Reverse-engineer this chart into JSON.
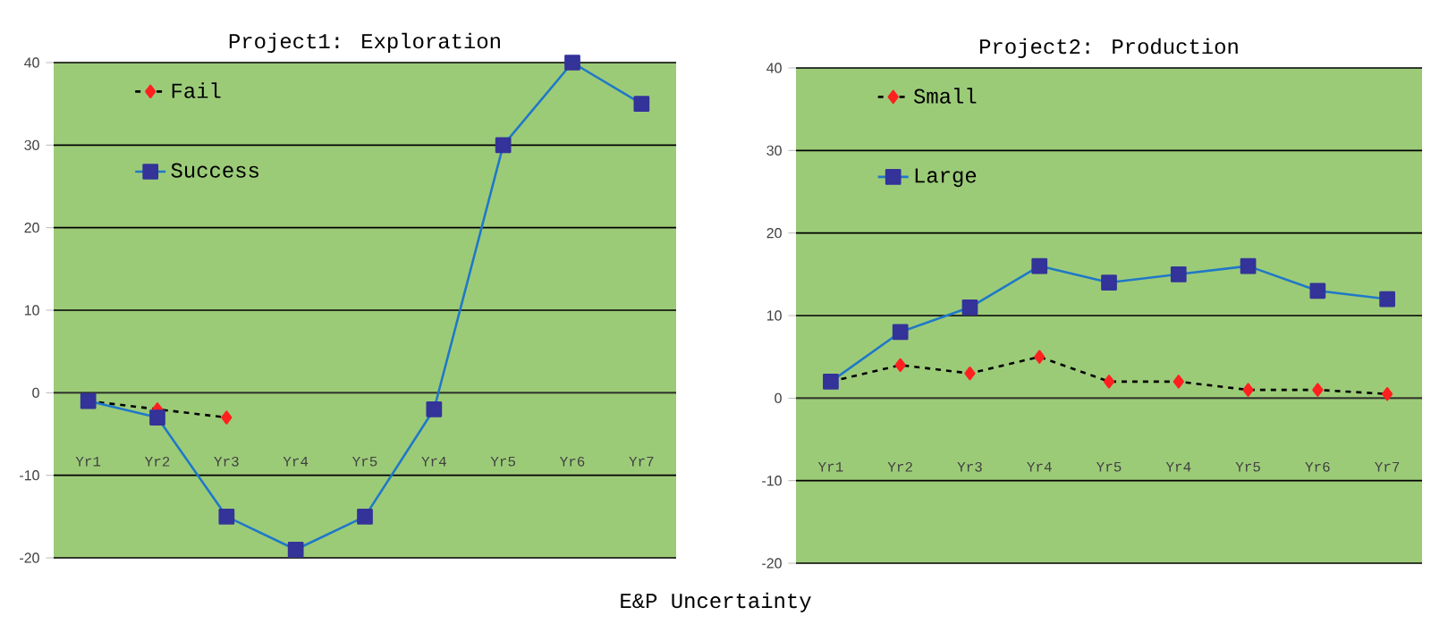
{
  "chart_data": [
    {
      "type": "line",
      "title": "Project1: Exploration",
      "categories": [
        "Yr1",
        "Yr2",
        "Yr3",
        "Yr4",
        "Yr5",
        "Yr4",
        "Yr5",
        "Yr6",
        "Yr7"
      ],
      "series": [
        {
          "name": "Fail",
          "color": "#ff2020",
          "marker": "diamond",
          "line_style": "dashed",
          "values": [
            -1,
            -2,
            -3,
            null,
            null,
            null,
            null,
            null,
            null
          ]
        },
        {
          "name": "Success",
          "color": "#333399",
          "marker": "square",
          "line_style": "solid",
          "values": [
            -1,
            -3,
            -15,
            -19,
            -15,
            -2,
            30,
            40,
            35
          ]
        }
      ],
      "ylim": [
        -20,
        40
      ],
      "yticks": [
        -20,
        -10,
        0,
        10,
        20,
        30,
        40
      ],
      "grid": "y",
      "legend": "top left",
      "annotations": [
        "E&P Uncertainty"
      ]
    },
    {
      "type": "line",
      "title": "Project2: Production",
      "categories": [
        "Yr1",
        "Yr2",
        "Yr3",
        "Yr4",
        "Yr5",
        "Yr4",
        "Yr5",
        "Yr6",
        "Yr7"
      ],
      "series": [
        {
          "name": "Small",
          "color": "#ff2020",
          "marker": "diamond",
          "line_style": "dashed",
          "values": [
            2,
            4,
            3,
            5,
            2,
            2,
            1,
            1,
            0.5
          ]
        },
        {
          "name": "Large",
          "color": "#333399",
          "marker": "square",
          "line_style": "solid",
          "values": [
            2,
            8,
            11,
            16,
            14,
            15,
            16,
            13,
            12
          ]
        }
      ],
      "ylim": [
        -20,
        40
      ],
      "yticks": [
        -20,
        -10,
        0,
        10,
        20,
        30,
        40
      ],
      "grid": "y",
      "legend": "top left"
    }
  ]
}
